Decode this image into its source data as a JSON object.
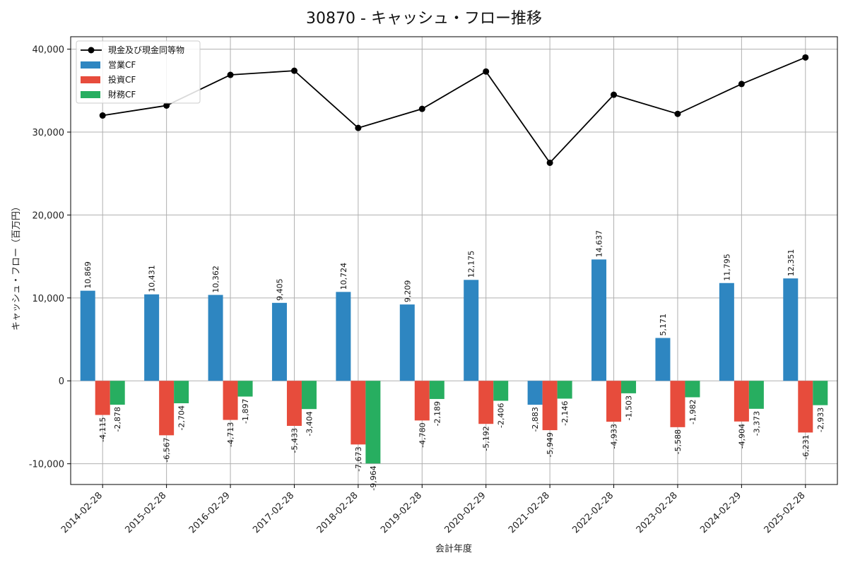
{
  "chart_data": {
    "type": "bar",
    "title": "30870 - キャッシュ・フロー推移",
    "xlabel": "会計年度",
    "ylabel": "キャッシュ・フロー（百万円）",
    "ylim": [
      -12500,
      41500
    ],
    "yticks": [
      -10000,
      0,
      10000,
      20000,
      30000,
      40000
    ],
    "ytick_labels": [
      "-10,000",
      "0",
      "10,000",
      "20,000",
      "30,000",
      "40,000"
    ],
    "grid": true,
    "legend_position": "top-left",
    "categories": [
      "2014-02-28",
      "2015-02-28",
      "2016-02-29",
      "2017-02-28",
      "2018-02-28",
      "2019-02-28",
      "2020-02-29",
      "2021-02-28",
      "2022-02-28",
      "2023-02-28",
      "2024-02-29",
      "2025-02-28"
    ],
    "series": [
      {
        "name": "営業CF",
        "kind": "bar",
        "color": "#2e86c1",
        "values": [
          10869,
          10431,
          10362,
          9405,
          10724,
          9209,
          12175,
          -2883,
          14637,
          5171,
          11795,
          12351
        ],
        "labels": [
          "10,869",
          "10,431",
          "10,362",
          "9,405",
          "10,724",
          "9,209",
          "12,175",
          "-2,883",
          "14,637",
          "5,171",
          "11,795",
          "12,351"
        ]
      },
      {
        "name": "投資CF",
        "kind": "bar",
        "color": "#e74c3c",
        "values": [
          -4115,
          -6567,
          -4713,
          -5433,
          -7673,
          -4780,
          -5192,
          -5949,
          -4933,
          -5588,
          -4904,
          -6231
        ],
        "labels": [
          "-4,115",
          "-6,567",
          "-4,713",
          "-5,433",
          "-7,673",
          "-4,780",
          "-5,192",
          "-5,949",
          "-4,933",
          "-5,588",
          "-4,904",
          "-6,231"
        ]
      },
      {
        "name": "財務CF",
        "kind": "bar",
        "color": "#27ae60",
        "values": [
          -2878,
          -2704,
          -1897,
          -3404,
          -9964,
          -2189,
          -2406,
          -2146,
          -1503,
          -1982,
          -3373,
          -2933
        ],
        "labels": [
          "-2,878",
          "-2,704",
          "-1,897",
          "-3,404",
          "-9,964",
          "-2,189",
          "-2,406",
          "-2,146",
          "-1,503",
          "-1,982",
          "-3,373",
          "-2,933"
        ]
      },
      {
        "name": "現金及び現金同等物",
        "kind": "line",
        "color": "#000000",
        "values": [
          32000,
          33200,
          36900,
          37400,
          30500,
          32800,
          37300,
          26300,
          34500,
          32200,
          35800,
          39000
        ]
      }
    ]
  }
}
